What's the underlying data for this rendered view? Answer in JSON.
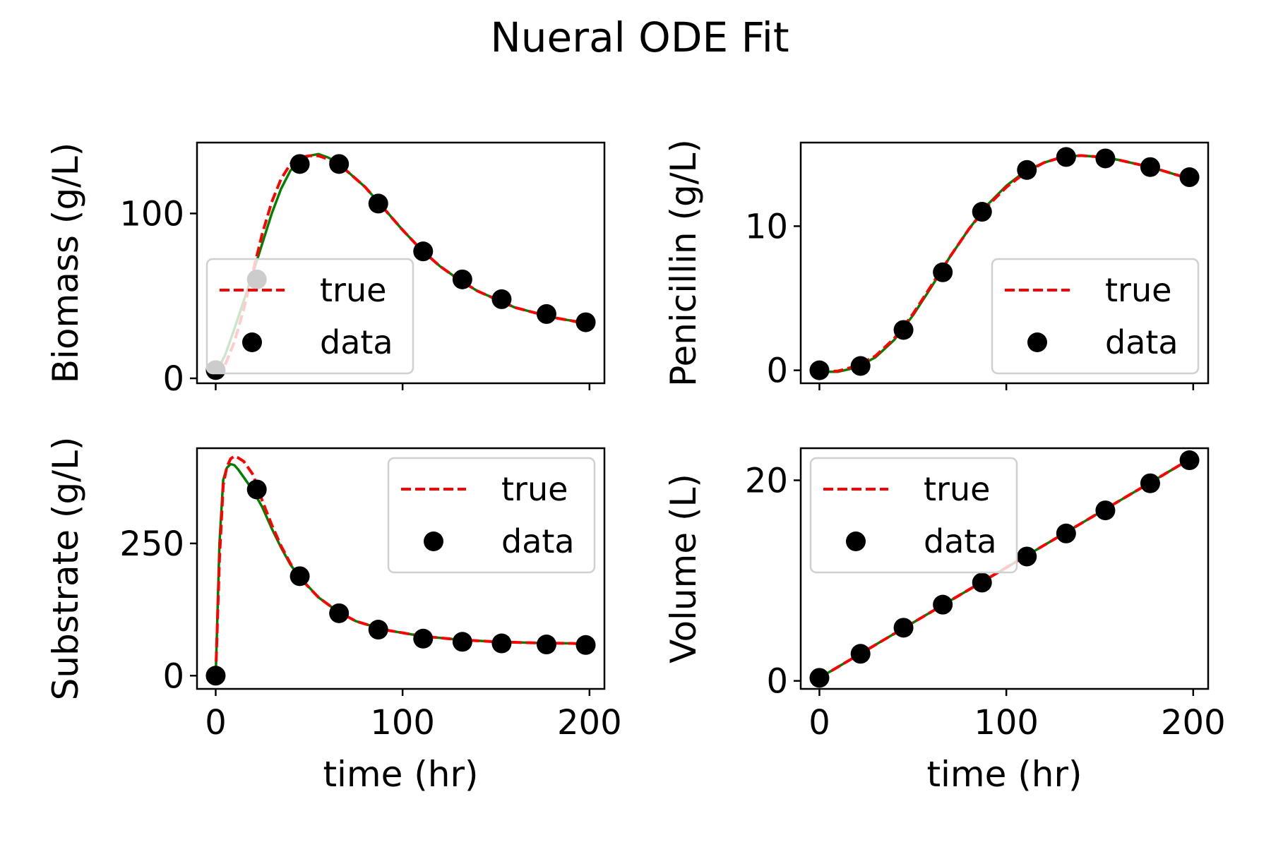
{
  "figure": {
    "title": "Nueral ODE Fit"
  },
  "colors": {
    "true": "#ff0000",
    "fit": "#008000",
    "data": "#000000"
  },
  "chart_data": [
    {
      "id": "biomass",
      "type": "line",
      "ylabel": "Biomass (g/L)",
      "xlabel": "",
      "xlim": [
        -10,
        208
      ],
      "ylim": [
        -3,
        143
      ],
      "xticks": [
        0,
        100,
        200
      ],
      "yticks": [
        0,
        100
      ],
      "xticklabels": [],
      "yticklabels": [
        "0",
        "100"
      ],
      "legend": {
        "position": "lower-left",
        "entries": [
          "true",
          "data"
        ]
      },
      "series": [
        {
          "name": "true",
          "style": "dashed",
          "x": [
            0,
            5,
            10,
            15,
            20,
            25,
            30,
            35,
            40,
            45,
            50,
            55,
            60,
            65,
            70,
            80,
            90,
            100,
            110,
            120,
            130,
            140,
            150,
            160,
            170,
            180,
            190,
            198
          ],
          "y": [
            2,
            8,
            22,
            42,
            65,
            88,
            107,
            121,
            130,
            134,
            135,
            135,
            133,
            130,
            126,
            116,
            103,
            90,
            78,
            68,
            60,
            53,
            48,
            43,
            40,
            37,
            35,
            33
          ]
        },
        {
          "style": "solid-fit",
          "x": [
            0,
            5,
            10,
            15,
            20,
            25,
            30,
            35,
            40,
            45,
            50,
            55,
            60,
            65,
            70,
            80,
            90,
            100,
            110,
            120,
            130,
            140,
            150,
            160,
            170,
            180,
            190,
            198
          ],
          "y": [
            3,
            14,
            30,
            47,
            64,
            82,
            100,
            115,
            126,
            132,
            135,
            136,
            134,
            131,
            126,
            116,
            103,
            90,
            78,
            68,
            60,
            53,
            48,
            43,
            40,
            37,
            35,
            34
          ]
        },
        {
          "name": "data",
          "style": "markers",
          "x": [
            0,
            22,
            45,
            66,
            87,
            111,
            132,
            153,
            177,
            198
          ],
          "y": [
            5,
            60,
            130,
            130,
            106,
            77,
            60,
            48,
            39,
            34
          ]
        }
      ]
    },
    {
      "id": "penicillin",
      "type": "line",
      "ylabel": "Penicillin (g/L)",
      "xlabel": "",
      "xlim": [
        -10,
        208
      ],
      "ylim": [
        -0.9,
        15.8
      ],
      "xticks": [
        0,
        100,
        200
      ],
      "yticks": [
        0,
        10
      ],
      "xticklabels": [],
      "yticklabels": [
        "0",
        "10"
      ],
      "legend": {
        "position": "lower-right",
        "entries": [
          "true",
          "data"
        ]
      },
      "series": [
        {
          "name": "true",
          "style": "dashed",
          "x": [
            0,
            10,
            20,
            30,
            40,
            50,
            60,
            70,
            80,
            90,
            100,
            110,
            120,
            130,
            140,
            150,
            160,
            170,
            180,
            190,
            198
          ],
          "y": [
            -0.1,
            -0.05,
            0.3,
            1.0,
            2.2,
            3.9,
            5.9,
            7.9,
            9.8,
            11.4,
            12.7,
            13.7,
            14.4,
            14.8,
            14.9,
            14.8,
            14.6,
            14.3,
            14.0,
            13.6,
            13.3
          ]
        },
        {
          "style": "solid-fit",
          "x": [
            0,
            10,
            20,
            30,
            40,
            50,
            60,
            70,
            80,
            90,
            100,
            110,
            120,
            130,
            140,
            150,
            160,
            170,
            180,
            190,
            198
          ],
          "y": [
            -0.1,
            -0.1,
            0.2,
            0.9,
            2.1,
            3.8,
            5.8,
            7.9,
            9.8,
            11.5,
            12.8,
            13.8,
            14.4,
            14.8,
            14.9,
            14.8,
            14.6,
            14.3,
            14.0,
            13.6,
            13.3
          ]
        },
        {
          "name": "data",
          "style": "markers",
          "x": [
            0,
            22,
            45,
            66,
            87,
            111,
            132,
            153,
            177,
            198
          ],
          "y": [
            0,
            0.3,
            2.8,
            6.8,
            11.0,
            13.9,
            14.8,
            14.7,
            14.1,
            13.4
          ]
        }
      ]
    },
    {
      "id": "substrate",
      "type": "line",
      "ylabel": "Substrate (g/L)",
      "xlabel": "time (hr)",
      "xlim": [
        -10,
        208
      ],
      "ylim": [
        -25,
        430
      ],
      "xticks": [
        0,
        100,
        200
      ],
      "yticks": [
        0,
        250
      ],
      "xticklabels": [
        "0",
        "100",
        "200"
      ],
      "yticklabels": [
        "0",
        "250"
      ],
      "legend": {
        "position": "upper-right",
        "entries": [
          "true",
          "data"
        ]
      },
      "series": [
        {
          "name": "true",
          "style": "dashed",
          "x": [
            0,
            2,
            4,
            6,
            8,
            10,
            12,
            15,
            20,
            25,
            30,
            35,
            40,
            45,
            55,
            65,
            75,
            90,
            110,
            130,
            150,
            170,
            190,
            198
          ],
          "y": [
            0,
            220,
            360,
            395,
            410,
            415,
            412,
            405,
            380,
            330,
            285,
            245,
            212,
            185,
            148,
            122,
            103,
            87,
            75,
            68,
            64,
            62,
            61,
            60
          ]
        },
        {
          "style": "solid-fit",
          "x": [
            0,
            2,
            4,
            6,
            8,
            10,
            12,
            15,
            20,
            25,
            30,
            35,
            40,
            45,
            55,
            65,
            75,
            90,
            110,
            130,
            150,
            170,
            190,
            198
          ],
          "y": [
            0,
            250,
            370,
            393,
            400,
            398,
            390,
            375,
            350,
            318,
            278,
            242,
            210,
            186,
            148,
            122,
            103,
            87,
            75,
            68,
            64,
            62,
            61,
            60
          ]
        },
        {
          "name": "data",
          "style": "markers",
          "x": [
            0,
            22,
            45,
            66,
            87,
            111,
            132,
            153,
            177,
            198
          ],
          "y": [
            0,
            352,
            188,
            118,
            87,
            70,
            64,
            61,
            59,
            58
          ]
        }
      ]
    },
    {
      "id": "volume",
      "type": "line",
      "ylabel": "Volume (L)",
      "xlabel": "time (hr)",
      "xlim": [
        -10,
        208
      ],
      "ylim": [
        -0.8,
        23.2
      ],
      "xticks": [
        0,
        100,
        200
      ],
      "yticks": [
        0,
        20
      ],
      "xticklabels": [
        "0",
        "100",
        "200"
      ],
      "yticklabels": [
        "0",
        "20"
      ],
      "legend": {
        "position": "upper-left",
        "entries": [
          "true",
          "data"
        ]
      },
      "series": [
        {
          "name": "true",
          "style": "dashed",
          "x": [
            0,
            200
          ],
          "y": [
            0.3,
            22.3
          ]
        },
        {
          "style": "solid-fit",
          "x": [
            0,
            200
          ],
          "y": [
            0.3,
            22.3
          ]
        },
        {
          "name": "data",
          "style": "markers",
          "x": [
            0,
            22,
            45,
            66,
            87,
            111,
            132,
            153,
            177,
            198
          ],
          "y": [
            0.3,
            2.7,
            5.3,
            7.6,
            9.8,
            12.4,
            14.7,
            17.0,
            19.7,
            22.0
          ]
        }
      ]
    }
  ]
}
